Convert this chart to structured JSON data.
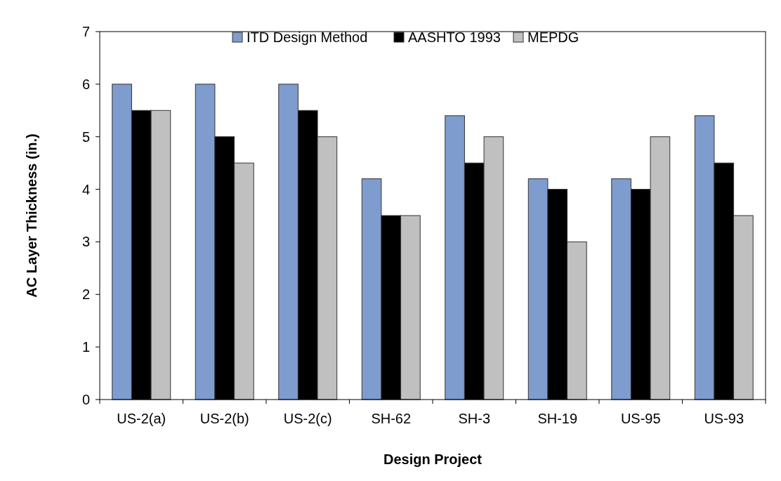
{
  "chart_data": {
    "type": "bar",
    "xlabel": "Design Project",
    "ylabel": "AC Layer Thickness (in.)",
    "categories": [
      "US-2(a)",
      "US-2(b)",
      "US-2(c)",
      "SH-62",
      "SH-3",
      "SH-19",
      "US-95",
      "US-93"
    ],
    "series": [
      {
        "name": "ITD Design Method",
        "color": "#7f9ccf",
        "values": [
          6,
          6,
          6,
          4.2,
          5.4,
          4.2,
          4.2,
          5.4
        ]
      },
      {
        "name": "AASHTO 1993",
        "color": "#000000",
        "values": [
          5.5,
          5,
          5.5,
          3.5,
          4.5,
          4,
          4,
          4.5
        ]
      },
      {
        "name": "MEPDG",
        "color": "#c0c0c0",
        "values": [
          5.5,
          4.5,
          5,
          3.5,
          5,
          3,
          5,
          3.5
        ]
      }
    ],
    "ylim": [
      0,
      7
    ],
    "yticks": [
      0,
      1,
      2,
      3,
      4,
      5,
      6,
      7
    ],
    "grid": false,
    "legend": "top"
  }
}
